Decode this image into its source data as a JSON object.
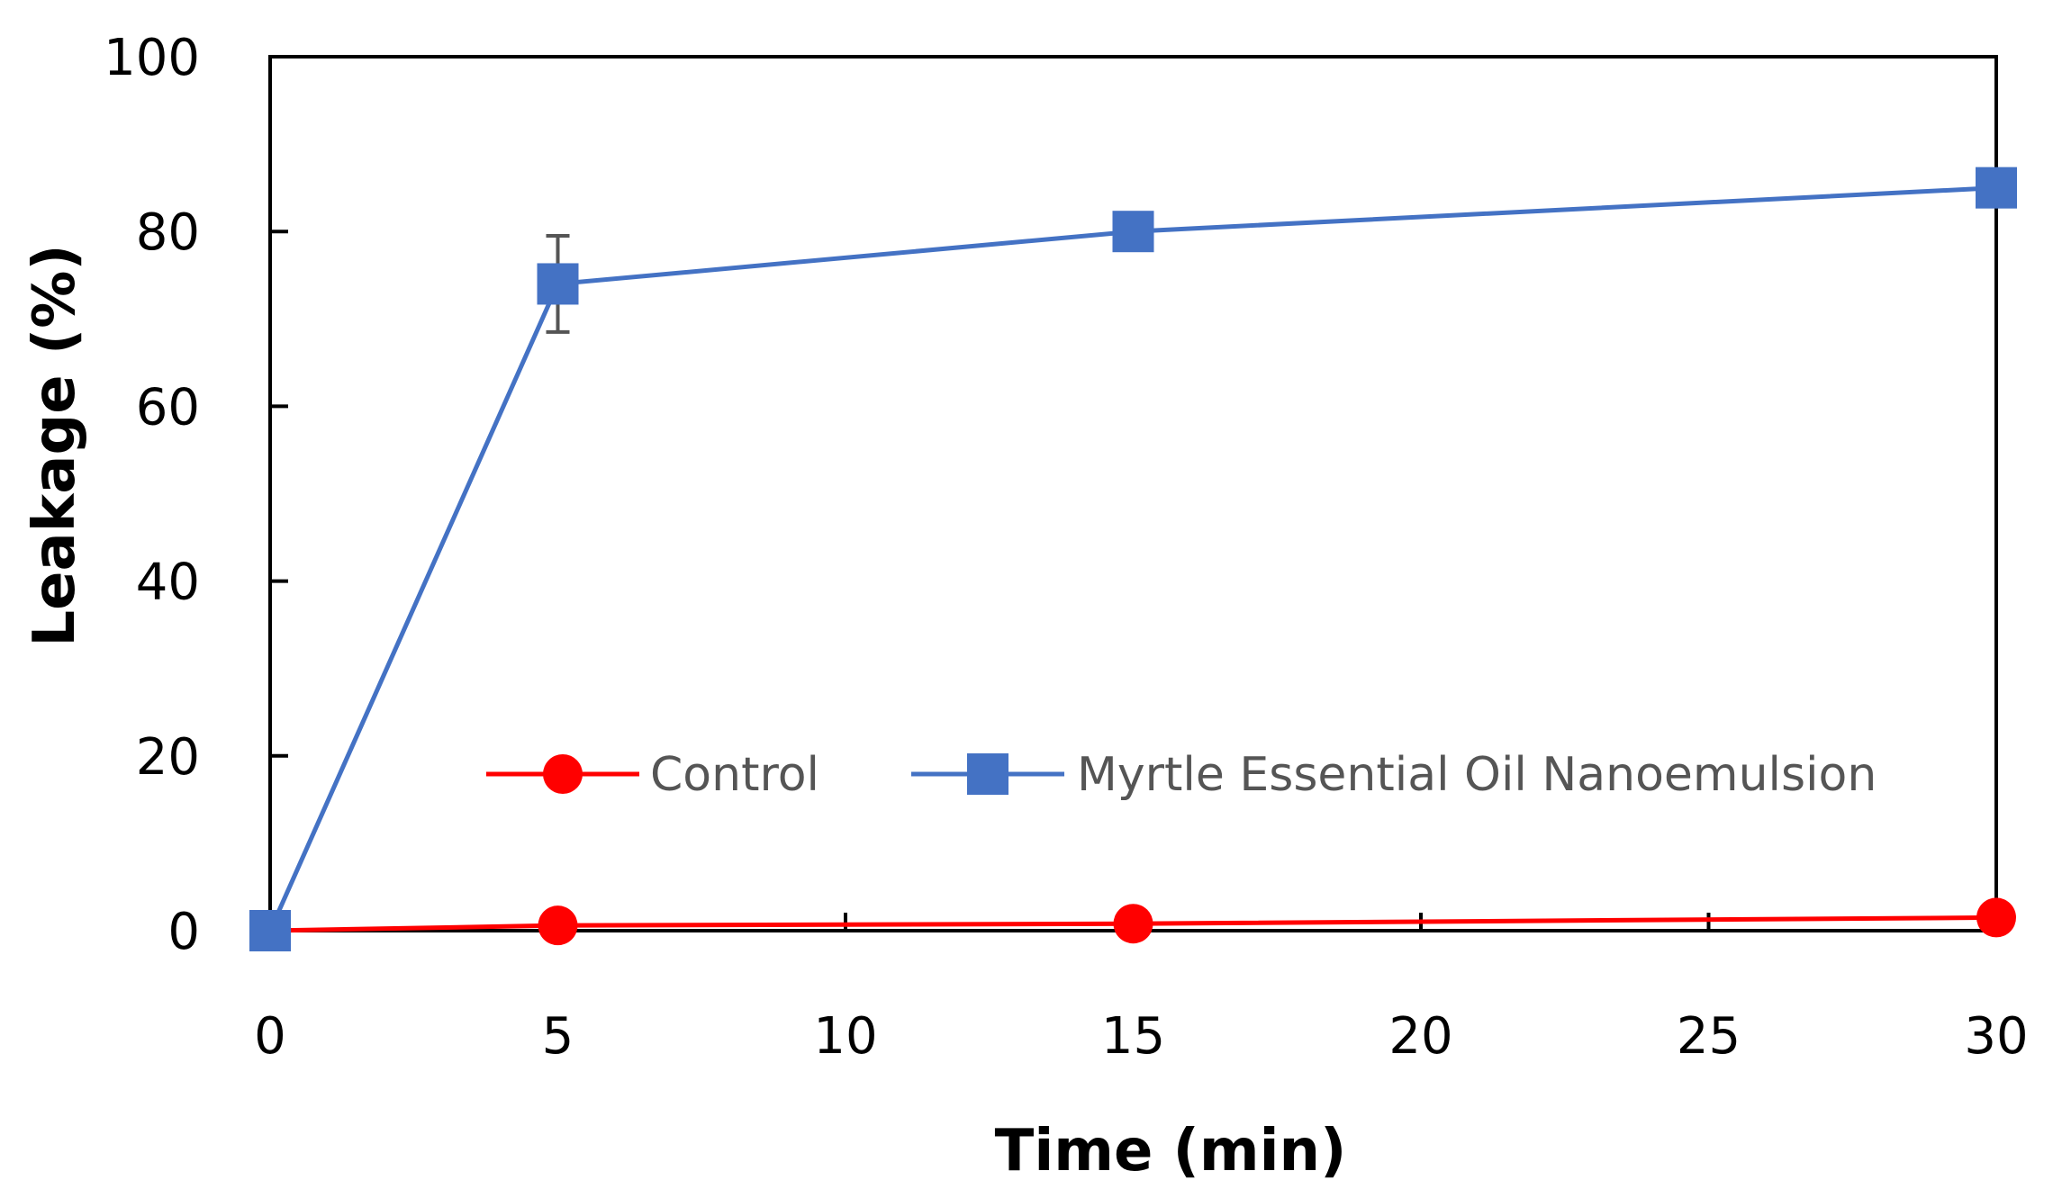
{
  "chart_data": {
    "type": "line",
    "xlabel": "Time (min)",
    "ylabel": "Leakage (%)",
    "xlim": [
      0,
      30
    ],
    "ylim": [
      0,
      100
    ],
    "xticks": [
      0,
      5,
      10,
      15,
      20,
      25,
      30
    ],
    "yticks": [
      0,
      20,
      40,
      60,
      80,
      100
    ],
    "grid": false,
    "legend_position": "center",
    "series": [
      {
        "name": "Control",
        "color": "#ff0000",
        "marker": "circle",
        "x": [
          0,
          5,
          15,
          30
        ],
        "y": [
          0,
          0.6,
          0.8,
          1.5
        ],
        "error": [
          0,
          0,
          0,
          1.5
        ]
      },
      {
        "name": "Myrtle Essential Oil Nanoemulsion",
        "color": "#4472c4",
        "marker": "square",
        "x": [
          0,
          5,
          15,
          30
        ],
        "y": [
          0,
          74,
          80,
          85
        ],
        "error": [
          0,
          5.5,
          0,
          0
        ]
      }
    ]
  }
}
